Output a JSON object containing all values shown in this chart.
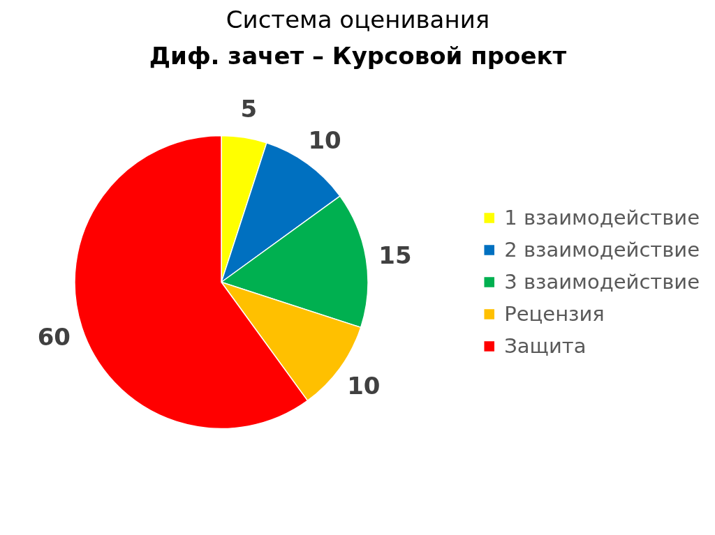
{
  "chart_data": {
    "type": "pie",
    "title": "Система оценивания",
    "subtitle": "Диф. зачет – Курсовой проект",
    "categories": [
      "1 взаимодействие",
      "2 взаимодействие",
      "3 взаимодействие",
      "Рецензия",
      "Защита"
    ],
    "values": [
      5,
      10,
      15,
      10,
      60
    ],
    "colors": [
      "#ffff00",
      "#0070c0",
      "#00b050",
      "#ffc000",
      "#ff0000"
    ],
    "data_labels": true,
    "legend": "right"
  }
}
